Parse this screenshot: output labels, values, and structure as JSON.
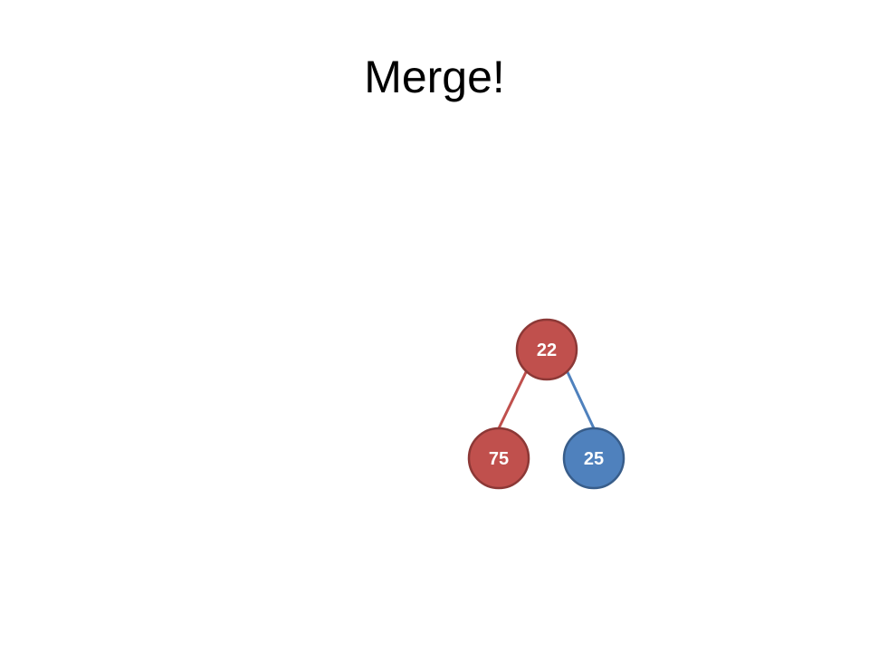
{
  "slide": {
    "title": "Merge!"
  },
  "tree": {
    "root": {
      "value": "22",
      "color": "red"
    },
    "children": [
      {
        "value": "75",
        "color": "red"
      },
      {
        "value": "25",
        "color": "blue"
      }
    ]
  },
  "colors": {
    "red_fill": "#C0504D",
    "red_stroke": "#8C3836",
    "blue_fill": "#4F81BD",
    "blue_stroke": "#385D8A",
    "red_edge": "#C0504D",
    "blue_edge": "#4F81BD"
  }
}
